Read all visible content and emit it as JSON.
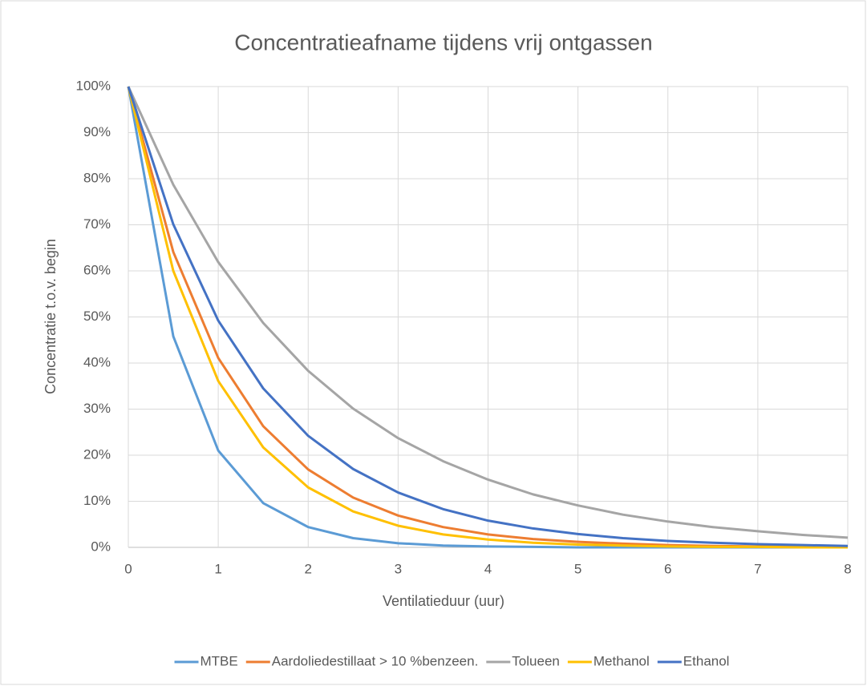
{
  "chart_data": {
    "type": "line",
    "title": "Concentratieafname tijdens vrij ontgassen",
    "x_label": "Ventilatieduur (uur)",
    "y_label": "Concentratie t.o.v. begin",
    "x": [
      0,
      0.5,
      1,
      1.5,
      2,
      2.5,
      3,
      3.5,
      4,
      4.5,
      5,
      5.5,
      6,
      6.5,
      7,
      7.5,
      8
    ],
    "series": [
      {
        "name": "MTBE",
        "color": "#5b9bd5",
        "values": [
          100,
          45.8,
          21.0,
          9.6,
          4.4,
          2.0,
          0.9,
          0.4,
          0.2,
          0.1,
          0,
          0,
          0,
          0,
          0,
          0,
          0
        ]
      },
      {
        "name": "Aardoliedestillaat > 10 %benzeen.",
        "color": "#ed7d31",
        "values": [
          100,
          64.1,
          41.1,
          26.3,
          16.9,
          10.8,
          6.9,
          4.4,
          2.8,
          1.8,
          1.2,
          0.8,
          0.5,
          0.3,
          0.2,
          0.1,
          0.1
        ]
      },
      {
        "name": "Tolueen",
        "color": "#a5a5a5",
        "values": [
          100,
          78.7,
          61.9,
          48.7,
          38.3,
          30.1,
          23.7,
          18.7,
          14.7,
          11.5,
          9.1,
          7.1,
          5.6,
          4.4,
          3.5,
          2.7,
          2.1
        ]
      },
      {
        "name": "Methanol",
        "color": "#ffc000",
        "values": [
          100,
          60.0,
          36.1,
          21.7,
          13.0,
          7.8,
          4.7,
          2.8,
          1.7,
          1.0,
          0.6,
          0.4,
          0.2,
          0.1,
          0.1,
          0,
          0
        ]
      },
      {
        "name": "Ethanol",
        "color": "#4472c4",
        "values": [
          100,
          70.1,
          49.2,
          34.5,
          24.2,
          17.0,
          11.9,
          8.3,
          5.8,
          4.1,
          2.9,
          2.0,
          1.4,
          1.0,
          0.7,
          0.5,
          0.3
        ]
      }
    ],
    "xlim": [
      0,
      8
    ],
    "xticks": [
      0,
      1,
      2,
      3,
      4,
      5,
      6,
      7,
      8
    ],
    "ylim": [
      0,
      100
    ],
    "yticks": [
      {
        "value": 0,
        "label": "0%"
      },
      {
        "value": 10,
        "label": "10%"
      },
      {
        "value": 20,
        "label": "20%"
      },
      {
        "value": 30,
        "label": "30%"
      },
      {
        "value": 40,
        "label": "40%"
      },
      {
        "value": 50,
        "label": "50%"
      },
      {
        "value": 60,
        "label": "60%"
      },
      {
        "value": 70,
        "label": "70%"
      },
      {
        "value": 80,
        "label": "80%"
      },
      {
        "value": 90,
        "label": "90%"
      },
      {
        "value": 100,
        "label": "100%"
      }
    ],
    "grid": true,
    "legend": "bottom"
  }
}
